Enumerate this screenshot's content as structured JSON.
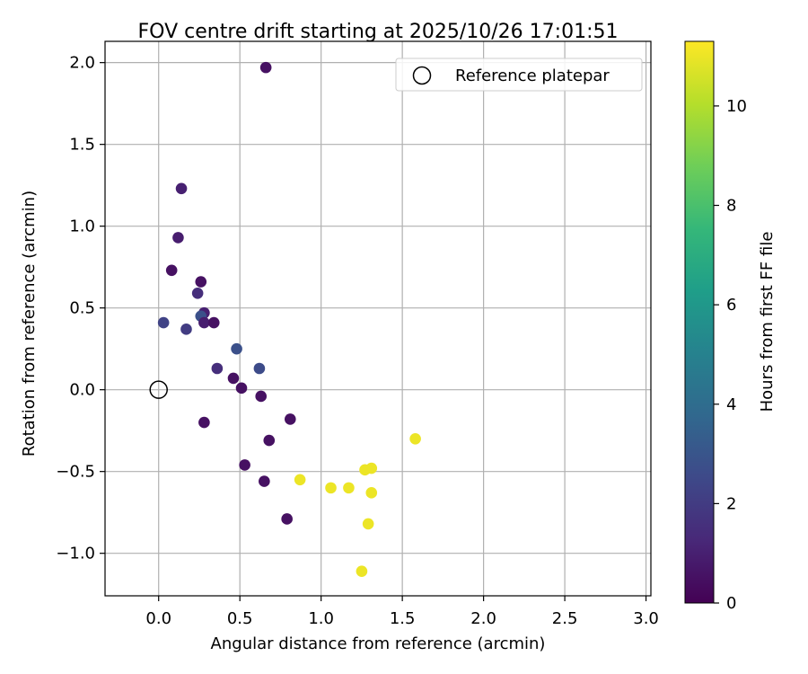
{
  "chart_data": {
    "type": "scatter",
    "title": "FOV centre drift starting at 2025/10/26 17:01:51",
    "xlabel": "Angular distance from reference (arcmin)",
    "ylabel": "Rotation from reference (arcmin)",
    "xlim": [
      -0.33,
      3.03
    ],
    "ylim": [
      -1.26,
      2.13
    ],
    "xticks": [
      0.0,
      0.5,
      1.0,
      1.5,
      2.0,
      2.5,
      3.0
    ],
    "xtick_labels": [
      "0.0",
      "0.5",
      "1.0",
      "1.5",
      "2.0",
      "2.5",
      "3.0"
    ],
    "yticks": [
      -1.0,
      -0.5,
      0.0,
      0.5,
      1.0,
      1.5,
      2.0
    ],
    "ytick_labels": [
      "−1.0",
      "−0.5",
      "0.0",
      "0.5",
      "1.0",
      "1.5",
      "2.0"
    ],
    "grid": true,
    "legend": {
      "label": "Reference platepar",
      "position": "top-right"
    },
    "reference_point": {
      "x": 0.0,
      "y": 0.0
    },
    "colorbar": {
      "label": "Hours from first FF file",
      "range": [
        0,
        11.3
      ],
      "ticks": [
        0,
        2,
        4,
        6,
        8,
        10
      ],
      "tick_labels": [
        "0",
        "2",
        "4",
        "6",
        "8",
        "10"
      ],
      "colormap": [
        "#440154",
        "#482878",
        "#3e4989",
        "#31688e",
        "#26828e",
        "#1f9e89",
        "#35b779",
        "#6ece58",
        "#b5de2b",
        "#fde725"
      ]
    },
    "points": [
      {
        "x": 0.66,
        "y": 1.97,
        "hours": 0.5
      },
      {
        "x": 0.14,
        "y": 1.23,
        "hours": 1.0
      },
      {
        "x": 0.12,
        "y": 0.93,
        "hours": 0.9
      },
      {
        "x": 0.08,
        "y": 0.73,
        "hours": 0.5
      },
      {
        "x": 0.26,
        "y": 0.66,
        "hours": 0.5
      },
      {
        "x": 0.24,
        "y": 0.59,
        "hours": 1.5
      },
      {
        "x": 0.28,
        "y": 0.47,
        "hours": 1.0
      },
      {
        "x": 0.26,
        "y": 0.45,
        "hours": 2.8
      },
      {
        "x": 0.28,
        "y": 0.41,
        "hours": 0.9
      },
      {
        "x": 0.34,
        "y": 0.41,
        "hours": 0.5
      },
      {
        "x": 0.03,
        "y": 0.41,
        "hours": 2.3
      },
      {
        "x": 0.17,
        "y": 0.37,
        "hours": 2.0
      },
      {
        "x": 0.48,
        "y": 0.25,
        "hours": 2.8
      },
      {
        "x": 0.36,
        "y": 0.13,
        "hours": 1.5
      },
      {
        "x": 0.62,
        "y": 0.13,
        "hours": 2.6
      },
      {
        "x": 0.46,
        "y": 0.07,
        "hours": 0.5
      },
      {
        "x": 0.51,
        "y": 0.01,
        "hours": 0.5
      },
      {
        "x": 0.63,
        "y": -0.04,
        "hours": 0.5
      },
      {
        "x": 0.81,
        "y": -0.18,
        "hours": 0.5
      },
      {
        "x": 0.28,
        "y": -0.2,
        "hours": 0.5
      },
      {
        "x": 0.68,
        "y": -0.31,
        "hours": 0.5
      },
      {
        "x": 0.53,
        "y": -0.46,
        "hours": 0.5
      },
      {
        "x": 0.65,
        "y": -0.56,
        "hours": 0.5
      },
      {
        "x": 0.79,
        "y": -0.79,
        "hours": 0.5
      },
      {
        "x": 1.58,
        "y": -0.3,
        "hours": 11.0
      },
      {
        "x": 1.27,
        "y": -0.49,
        "hours": 11.0
      },
      {
        "x": 1.31,
        "y": -0.48,
        "hours": 11.0
      },
      {
        "x": 0.87,
        "y": -0.55,
        "hours": 11.0
      },
      {
        "x": 1.06,
        "y": -0.6,
        "hours": 11.0
      },
      {
        "x": 1.17,
        "y": -0.6,
        "hours": 11.0
      },
      {
        "x": 1.31,
        "y": -0.63,
        "hours": 11.0
      },
      {
        "x": 1.29,
        "y": -0.82,
        "hours": 11.0
      },
      {
        "x": 1.25,
        "y": -1.11,
        "hours": 11.0
      }
    ]
  }
}
